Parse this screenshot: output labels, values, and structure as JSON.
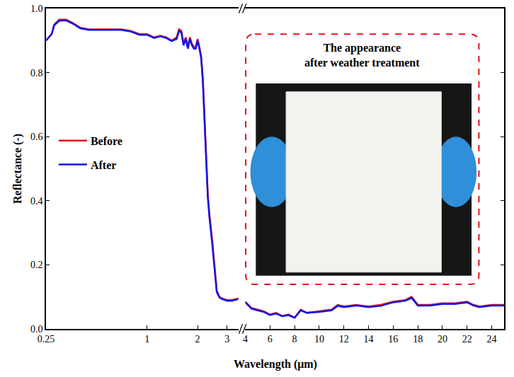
{
  "chart_data": [
    {
      "type": "line",
      "log": "x",
      "x_label": "Wavelength (μm)",
      "y_label": "Reflectance (-)",
      "xlim": [
        0.25,
        3.5
      ],
      "xticks": [
        0.25,
        1,
        2,
        3
      ],
      "ylim": [
        0,
        1
      ],
      "yticks": [
        {
          "value": 0,
          "label": "0.0"
        },
        0.2,
        0.4,
        0.6,
        0.8,
        {
          "value": 1,
          "label": "1.0"
        }
      ],
      "grid": false,
      "legend": "left",
      "x": [
        0.25,
        0.27,
        0.28,
        0.3,
        0.33,
        0.36,
        0.4,
        0.45,
        0.5,
        0.6,
        0.7,
        0.8,
        0.9,
        1.0,
        1.1,
        1.2,
        1.3,
        1.4,
        1.5,
        1.55,
        1.6,
        1.65,
        1.7,
        1.75,
        1.8,
        1.85,
        1.9,
        1.95,
        2.0,
        2.05,
        2.1,
        2.15,
        2.2,
        2.25,
        2.3,
        2.35,
        2.4,
        2.45,
        2.5,
        2.55,
        2.6,
        2.7,
        2.8,
        3.0,
        3.2,
        3.5
      ],
      "series": [
        {
          "name": "Before",
          "color": "#e8101a",
          "values": [
            0.9,
            0.92,
            0.95,
            0.965,
            0.965,
            0.955,
            0.94,
            0.935,
            0.935,
            0.935,
            0.935,
            0.93,
            0.92,
            0.92,
            0.91,
            0.915,
            0.91,
            0.9,
            0.91,
            0.935,
            0.93,
            0.89,
            0.91,
            0.88,
            0.91,
            0.89,
            0.88,
            0.88,
            0.905,
            0.88,
            0.85,
            0.78,
            0.65,
            0.52,
            0.42,
            0.36,
            0.32,
            0.27,
            0.22,
            0.17,
            0.12,
            0.1,
            0.095,
            0.09,
            0.09,
            0.095
          ]
        },
        {
          "name": "After",
          "color": "#1414e6",
          "values": [
            0.9,
            0.92,
            0.948,
            0.962,
            0.963,
            0.953,
            0.938,
            0.933,
            0.933,
            0.933,
            0.933,
            0.928,
            0.918,
            0.918,
            0.908,
            0.913,
            0.908,
            0.898,
            0.905,
            0.93,
            0.925,
            0.885,
            0.905,
            0.875,
            0.905,
            0.885,
            0.875,
            0.875,
            0.9,
            0.875,
            0.845,
            0.77,
            0.64,
            0.51,
            0.41,
            0.35,
            0.31,
            0.26,
            0.21,
            0.16,
            0.115,
            0.098,
            0.093,
            0.088,
            0.088,
            0.093
          ]
        }
      ]
    },
    {
      "type": "line",
      "xlim": [
        4,
        25
      ],
      "xticks": [
        4,
        6,
        8,
        10,
        12,
        14,
        16,
        18,
        20,
        22,
        24
      ],
      "ylim": [
        0,
        1
      ],
      "yticks": [
        {
          "value": 0,
          "label": "0.0"
        },
        0.2,
        0.4,
        0.6,
        0.8,
        {
          "value": 1,
          "label": "1.0"
        }
      ],
      "grid": false,
      "tick_labels": "x",
      "x": [
        4,
        4.5,
        5,
        5.5,
        6,
        6.5,
        7,
        7.5,
        8,
        8.5,
        9,
        10,
        11,
        11.5,
        12,
        13,
        14,
        15,
        16,
        17,
        17.5,
        18,
        19,
        20,
        21,
        22,
        22.5,
        23,
        24,
        25
      ],
      "series": [
        {
          "name": "Before",
          "color": "#e8101a",
          "values": [
            0.085,
            0.065,
            0.06,
            0.055,
            0.045,
            0.05,
            0.04,
            0.045,
            0.035,
            0.06,
            0.05,
            0.055,
            0.06,
            0.075,
            0.07,
            0.075,
            0.07,
            0.075,
            0.085,
            0.09,
            0.1,
            0.075,
            0.075,
            0.08,
            0.08,
            0.085,
            0.075,
            0.07,
            0.075,
            0.075
          ]
        },
        {
          "name": "After",
          "color": "#1414e6",
          "values": [
            0.083,
            0.063,
            0.058,
            0.053,
            0.043,
            0.048,
            0.04,
            0.043,
            0.035,
            0.058,
            0.05,
            0.053,
            0.058,
            0.072,
            0.068,
            0.073,
            0.068,
            0.072,
            0.083,
            0.088,
            0.097,
            0.073,
            0.073,
            0.078,
            0.078,
            0.083,
            0.073,
            0.068,
            0.073,
            0.073
          ]
        }
      ],
      "annotations": [
        {
          "text": [
            "The appearance",
            "after weather treatment"
          ]
        }
      ]
    }
  ]
}
